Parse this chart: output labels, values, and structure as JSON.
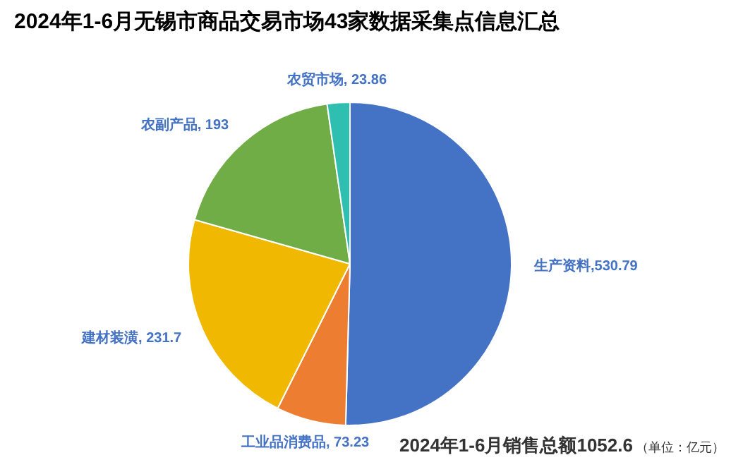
{
  "chart_data": {
    "type": "pie",
    "title": "2024年1-6月无锡市商品交易市场43家数据采集点信息汇总",
    "categories": [
      "生产资料",
      "工业品消费品",
      "建材装潢",
      "农副产品",
      "农贸市场"
    ],
    "values": [
      530.79,
      73.23,
      231.7,
      193,
      23.86
    ],
    "colors": [
      "#4472c4",
      "#ed7d31",
      "#f0b800",
      "#70ad47",
      "#2ebfb0"
    ],
    "value_labels": [
      ",530.79",
      ", 73.23",
      ", 231.7",
      ", 193",
      ", 23.86"
    ],
    "annotations": [
      "2024年1-6月销售总额1052.6",
      "（单位：亿元）"
    ]
  }
}
